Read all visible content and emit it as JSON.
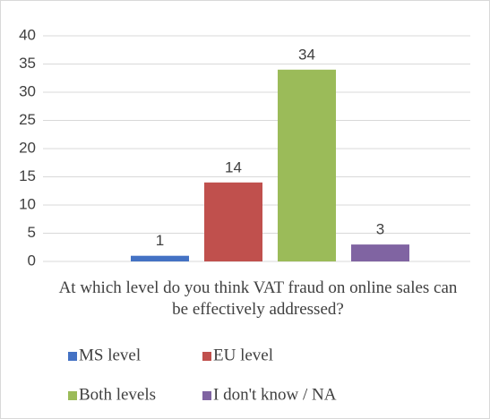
{
  "chart_data": {
    "type": "bar",
    "categories": [
      "At which level do you think VAT fraud on online sales can be effectively addressed?"
    ],
    "series": [
      {
        "name": "MS level",
        "color": "#4472c4",
        "values": [
          1
        ]
      },
      {
        "name": "EU level",
        "color": "#c0504d",
        "values": [
          14
        ]
      },
      {
        "name": "Both levels",
        "color": "#9bbb59",
        "values": [
          34
        ]
      },
      {
        "name": "I don't know / NA",
        "color": "#8064a2",
        "values": [
          3
        ]
      }
    ],
    "ylim": [
      0,
      40
    ],
    "yticks": [
      0,
      5,
      10,
      15,
      20,
      25,
      30,
      35,
      40
    ],
    "grid": true,
    "legend": "bottom"
  }
}
